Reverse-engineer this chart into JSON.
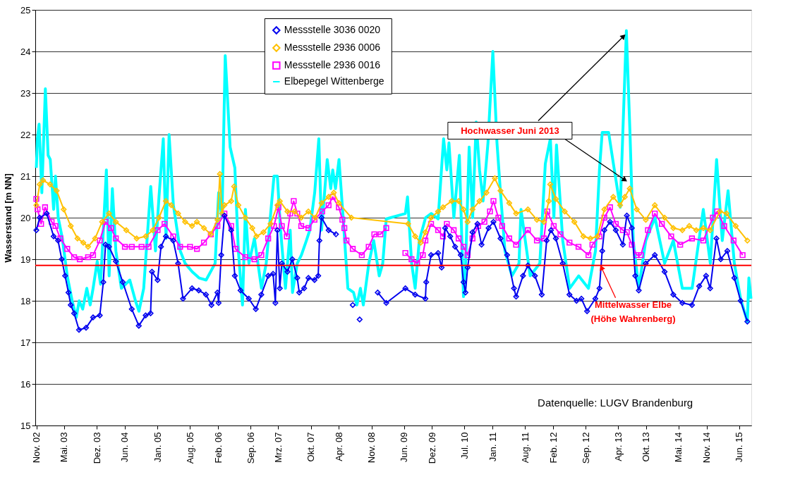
{
  "chart_data": {
    "type": "line",
    "ylabel": "Wasserstand [m NN]",
    "xlim": [
      "2002-10-25",
      "2015-08-20"
    ],
    "xticks": [
      {
        "value": "2002-11-01",
        "label": "Nov. 02"
      },
      {
        "value": "2003-05-01",
        "label": "Mai. 03"
      },
      {
        "value": "2003-12-01",
        "label": "Dez. 03"
      },
      {
        "value": "2004-06-01",
        "label": "Jun. 04"
      },
      {
        "value": "2005-01-01",
        "label": "Jan. 05"
      },
      {
        "value": "2005-08-01",
        "label": "Aug. 05"
      },
      {
        "value": "2006-02-01",
        "label": "Feb. 06"
      },
      {
        "value": "2006-09-01",
        "label": "Sep. 06"
      },
      {
        "value": "2007-03-01",
        "label": "Mrz. 07"
      },
      {
        "value": "2007-10-01",
        "label": "Okt. 07"
      },
      {
        "value": "2008-04-01",
        "label": "Apr. 08"
      },
      {
        "value": "2008-11-01",
        "label": "Nov. 08"
      },
      {
        "value": "2009-06-01",
        "label": "Jun. 09"
      },
      {
        "value": "2009-12-01",
        "label": "Dez. 09"
      },
      {
        "value": "2010-07-01",
        "label": "Jul. 10"
      },
      {
        "value": "2011-01-01",
        "label": "Jan. 11"
      },
      {
        "value": "2011-08-01",
        "label": "Aug. 11"
      },
      {
        "value": "2012-02-01",
        "label": "Feb. 12"
      },
      {
        "value": "2012-09-01",
        "label": "Sep. 12"
      },
      {
        "value": "2013-04-01",
        "label": "Apr. 13"
      },
      {
        "value": "2013-10-01",
        "label": "Okt. 13"
      },
      {
        "value": "2014-05-01",
        "label": "Mai. 14"
      },
      {
        "value": "2014-11-01",
        "label": "Nov. 14"
      },
      {
        "value": "2015-06-01",
        "label": "Jun. 15"
      }
    ],
    "ylim": [
      15,
      25
    ],
    "yticks": [
      15,
      16,
      17,
      18,
      19,
      20,
      21,
      22,
      23,
      24,
      25
    ],
    "grid": "y",
    "legend": "top",
    "series": [
      {
        "name": "Messstelle 3036 0020",
        "color": "#0000ee",
        "marker": "diamond",
        "x": [
          "2002-11-01",
          "2002-11-23",
          "2003-01-08",
          "2003-02-22",
          "2003-03-23",
          "2003-04-16",
          "2003-05-08",
          "2003-05-30",
          "2003-06-14",
          "2003-07-06",
          "2003-08-07",
          "2003-09-22",
          "2003-11-07",
          "2003-12-21",
          "2004-01-13",
          "2004-01-27",
          "2004-02-19",
          "2004-04-04",
          "2004-05-19",
          "2004-07-17",
          "2004-09-01",
          "2004-10-16",
          "2004-11-17",
          "2004-11-26",
          "2005-01-02",
          "2005-01-24",
          "2005-02-25",
          "2005-04-14",
          "2005-05-16",
          "2005-06-17",
          "2005-08-15",
          "2005-09-28",
          "2005-11-14",
          "2005-12-20",
          "2006-01-28",
          "2006-02-05",
          "2006-02-22",
          "2006-03-15",
          "2006-04-28",
          "2006-05-22",
          "2006-06-28",
          "2006-08-21",
          "2006-10-06",
          "2006-11-11",
          "2006-12-26",
          "2007-01-27",
          "2007-02-11",
          "2007-02-24",
          "2007-03-12",
          "2007-03-25",
          "2007-05-01",
          "2007-06-02",
          "2007-07-04",
          "2007-07-17",
          "2007-08-18",
          "2007-09-15",
          "2007-10-25",
          "2007-11-18",
          "2007-11-26",
          "2007-12-10",
          "2008-01-25",
          "2008-03-13",
          "2008-04-15",
          "2008-07-01",
          "2008-07-15",
          "2008-08-15",
          "2008-09-15",
          "2008-12-11",
          "2009-02-05",
          "2009-06-10",
          "2009-08-13",
          "2009-10-19",
          "2009-10-24",
          "2009-11-25",
          "2010-01-10",
          "2010-02-02",
          "2010-02-25",
          "2010-03-30",
          "2010-05-01",
          "2010-06-07",
          "2010-06-25",
          "2010-07-08",
          "2010-07-22",
          "2010-08-23",
          "2010-09-24",
          "2010-10-21",
          "2010-12-06",
          "2011-01-07",
          "2011-02-22",
          "2011-04-06",
          "2011-05-21",
          "2011-06-04",
          "2011-07-19",
          "2011-08-20",
          "2011-10-05",
          "2011-11-19",
          "2011-12-21",
          "2012-01-18",
          "2012-02-19",
          "2012-04-04",
          "2012-05-18",
          "2012-07-03",
          "2012-08-04",
          "2012-09-10",
          "2012-11-03",
          "2012-11-30",
          "2012-12-18",
          "2013-01-01",
          "2013-02-07",
          "2013-03-17",
          "2013-05-02",
          "2013-05-28",
          "2013-06-30",
          "2013-07-22",
          "2013-08-14",
          "2013-09-29",
          "2013-11-27",
          "2014-01-30",
          "2014-03-28",
          "2014-05-26",
          "2014-07-28",
          "2014-09-13",
          "2014-10-28",
          "2014-11-24",
          "2015-01-04",
          "2015-02-01",
          "2015-03-16",
          "2015-05-01",
          "2015-06-11",
          "2015-07-25"
        ],
        "values": [
          19.7,
          20.0,
          20.1,
          19.55,
          19.45,
          19.0,
          18.6,
          18.2,
          17.9,
          17.7,
          17.3,
          17.35,
          17.6,
          17.65,
          18.45,
          19.35,
          19.3,
          18.95,
          18.45,
          17.8,
          17.4,
          17.65,
          17.7,
          18.7,
          18.5,
          19.3,
          19.55,
          19.45,
          18.9,
          18.05,
          18.3,
          18.25,
          18.15,
          17.9,
          18.2,
          17.95,
          19.1,
          20.05,
          19.7,
          18.6,
          18.25,
          18.05,
          17.8,
          18.15,
          18.6,
          18.65,
          17.95,
          19.7,
          18.3,
          18.9,
          18.7,
          19.0,
          18.55,
          18.2,
          18.3,
          18.55,
          18.5,
          18.6,
          19.45,
          20.0,
          19.7,
          19.6,
          null,
          17.9,
          null,
          17.55,
          null,
          18.2,
          17.95,
          18.3,
          18.15,
          18.05,
          18.45,
          19.1,
          19.15,
          18.8,
          19.75,
          19.55,
          19.3,
          19.1,
          18.45,
          18.2,
          18.8,
          19.65,
          19.85,
          19.35,
          19.75,
          19.9,
          19.5,
          19.1,
          18.3,
          18.1,
          18.6,
          18.85,
          18.6,
          18.15,
          19.45,
          19.7,
          19.5,
          18.9,
          18.15,
          18.0,
          18.05,
          17.75,
          18.05,
          18.3,
          19.2,
          19.7,
          19.9,
          19.7,
          19.35,
          20.05,
          19.75,
          18.6,
          18.25,
          18.9,
          19.1,
          18.7,
          18.15,
          17.95,
          17.9,
          18.35,
          18.6,
          18.3,
          19.5,
          19.0,
          19.2,
          18.55,
          18.0,
          17.5
        ]
      },
      {
        "name": "Messstelle 2936 0006",
        "color": "#ffc000",
        "marker": "diamond",
        "x": [
          "2002-11-01",
          "2002-11-23",
          "2002-12-15",
          "2003-01-30",
          "2003-03-14",
          "2003-04-29",
          "2003-06-14",
          "2003-07-28",
          "2003-09-04",
          "2003-10-05",
          "2003-11-20",
          "2004-01-05",
          "2004-02-19",
          "2004-04-04",
          "2004-06-11",
          "2004-08-18",
          "2004-10-16",
          "2004-12-01",
          "2005-01-11",
          "2005-02-25",
          "2005-04-01",
          "2005-05-16",
          "2005-07-01",
          "2005-08-15",
          "2005-09-16",
          "2005-11-01",
          "2005-12-16",
          "2006-01-28",
          "2006-02-13",
          "2006-02-27",
          "2006-03-15",
          "2006-04-28",
          "2006-05-17",
          "2006-06-14",
          "2006-07-29",
          "2006-09-13",
          "2006-10-10",
          "2006-11-25",
          "2007-01-10",
          "2007-02-24",
          "2007-03-12",
          "2007-05-01",
          "2007-06-16",
          "2007-07-30",
          "2007-09-15",
          "2007-10-30",
          "2007-12-10",
          "2008-01-25",
          "2008-02-28",
          "2008-04-01",
          "2008-06-22",
          "2009-06-28",
          "2009-08-13",
          "2009-09-18",
          "2009-10-19",
          "2009-11-25",
          "2010-01-10",
          "2010-02-11",
          "2010-04-09",
          "2010-05-24",
          "2010-06-25",
          "2010-07-22",
          "2010-08-23",
          "2010-10-08",
          "2010-11-22",
          "2011-01-16",
          "2011-02-22",
          "2011-04-20",
          "2011-06-04",
          "2011-08-20",
          "2011-10-18",
          "2011-12-03",
          "2012-01-04",
          "2012-01-13",
          "2012-02-19",
          "2012-04-17",
          "2012-06-19",
          "2012-08-17",
          "2012-10-02",
          "2012-11-17",
          "2013-01-01",
          "2013-02-28",
          "2013-04-14",
          "2013-05-15",
          "2013-06-16",
          "2013-08-01",
          "2013-09-29",
          "2013-11-27",
          "2014-01-30",
          "2014-03-28",
          "2014-05-26",
          "2014-07-10",
          "2014-08-25",
          "2014-10-10",
          "2014-11-24",
          "2015-01-27",
          "2015-03-11",
          "2015-05-10",
          "2015-07-25"
        ],
        "values": [
          20.3,
          20.8,
          20.9,
          20.8,
          20.65,
          20.2,
          19.8,
          19.5,
          19.4,
          19.3,
          19.5,
          19.9,
          20.1,
          19.9,
          19.7,
          19.5,
          19.55,
          19.7,
          20.0,
          20.4,
          20.3,
          20.1,
          19.9,
          19.8,
          19.9,
          19.75,
          19.6,
          19.95,
          21.05,
          20.1,
          20.3,
          20.4,
          20.75,
          20.3,
          20.0,
          19.75,
          19.55,
          19.65,
          19.85,
          20.3,
          20.4,
          20.15,
          20.15,
          20.0,
          20.15,
          20.0,
          20.35,
          20.5,
          20.6,
          20.35,
          20.0,
          19.85,
          19.55,
          19.4,
          19.65,
          20.0,
          20.15,
          20.25,
          20.4,
          20.4,
          20.2,
          19.9,
          20.2,
          20.4,
          20.6,
          20.95,
          20.65,
          20.35,
          20.1,
          20.2,
          19.95,
          19.9,
          20.4,
          20.8,
          20.45,
          20.15,
          19.9,
          19.55,
          19.5,
          19.55,
          20.2,
          20.5,
          20.3,
          20.5,
          20.7,
          20.2,
          19.95,
          20.3,
          20.0,
          19.75,
          19.7,
          19.8,
          19.7,
          19.75,
          19.7,
          20.15,
          20.1,
          19.8,
          19.45
        ]
      },
      {
        "name": "Messstelle 2936 0016",
        "color": "#ff00ff",
        "marker": "square",
        "x": [
          "2002-11-01",
          "2002-11-09",
          "2002-12-02",
          "2002-12-28",
          "2003-02-09",
          "2003-03-06",
          "2003-04-07",
          "2003-05-22",
          "2003-07-06",
          "2003-08-12",
          "2003-10-05",
          "2003-11-07",
          "2003-12-21",
          "2004-01-27",
          "2004-03-03",
          "2004-04-04",
          "2004-06-02",
          "2004-07-17",
          "2004-09-19",
          "2004-11-04",
          "2005-01-02",
          "2005-02-16",
          "2005-04-14",
          "2005-05-29",
          "2005-08-02",
          "2005-09-16",
          "2005-11-01",
          "2005-12-16",
          "2006-01-28",
          "2006-03-15",
          "2006-04-28",
          "2006-05-26",
          "2006-07-29",
          "2006-09-27",
          "2006-11-11",
          "2006-12-26",
          "2007-02-02",
          "2007-03-03",
          "2007-03-25",
          "2007-04-27",
          "2007-05-19",
          "2007-06-11",
          "2007-07-04",
          "2007-07-30",
          "2007-09-15",
          "2007-10-25",
          "2007-12-14",
          "2008-01-25",
          "2008-02-21",
          "2008-04-01",
          "2008-04-24",
          "2008-05-07",
          "2008-05-21",
          "2008-07-01",
          "2008-08-29",
          "2008-10-13",
          "2008-11-19",
          "2008-12-29",
          "2009-02-05",
          "2009-04-01",
          "2009-06-10",
          "2009-07-20",
          "2009-08-26",
          "2009-10-02",
          "2009-10-19",
          "2009-11-25",
          "2010-01-10",
          "2010-02-11",
          "2010-03-08",
          "2010-04-22",
          "2010-05-24",
          "2010-06-25",
          "2010-07-22",
          "2010-08-23",
          "2010-09-29",
          "2010-11-09",
          "2010-12-15",
          "2011-01-07",
          "2011-02-08",
          "2011-03-05",
          "2011-04-20",
          "2011-06-04",
          "2011-08-20",
          "2011-10-18",
          "2011-12-03",
          "2011-12-25",
          "2012-02-05",
          "2012-03-20",
          "2012-05-18",
          "2012-07-16",
          "2012-09-19",
          "2012-10-15",
          "2012-11-30",
          "2013-01-01",
          "2013-02-07",
          "2013-03-17",
          "2013-05-02",
          "2013-05-28",
          "2013-06-30",
          "2013-08-01",
          "2013-08-28",
          "2013-10-13",
          "2013-11-27",
          "2014-01-12",
          "2014-03-14",
          "2014-05-12",
          "2014-07-28",
          "2014-10-10",
          "2014-12-12",
          "2015-01-09",
          "2015-02-24",
          "2015-04-26",
          "2015-06-24"
        ],
        "values": [
          20.45,
          20.2,
          19.85,
          20.25,
          19.9,
          19.8,
          19.5,
          19.25,
          19.05,
          19.0,
          19.05,
          19.1,
          19.45,
          19.9,
          19.75,
          19.5,
          19.3,
          19.3,
          19.3,
          19.3,
          19.7,
          19.85,
          19.55,
          19.3,
          19.3,
          19.25,
          19.4,
          19.6,
          19.8,
          20.1,
          19.8,
          19.25,
          19.05,
          19.0,
          19.1,
          19.5,
          19.8,
          20.25,
          19.8,
          19.55,
          20.1,
          20.4,
          20.1,
          19.8,
          19.75,
          19.95,
          20.15,
          20.3,
          20.5,
          20.25,
          19.95,
          19.75,
          19.45,
          19.25,
          19.1,
          19.3,
          19.6,
          19.6,
          19.75,
          null,
          19.15,
          19.0,
          18.9,
          19.1,
          19.45,
          19.85,
          19.7,
          19.55,
          19.85,
          19.7,
          19.5,
          19.3,
          19.1,
          19.5,
          19.8,
          19.9,
          20.15,
          20.4,
          20.0,
          19.8,
          19.5,
          19.35,
          19.7,
          19.45,
          19.5,
          20.15,
          19.8,
          19.6,
          19.4,
          19.3,
          19.1,
          19.35,
          19.55,
          20.0,
          20.25,
          19.85,
          19.7,
          19.65,
          19.35,
          19.1,
          19.1,
          19.7,
          20.1,
          19.85,
          19.55,
          19.35,
          19.5,
          19.45,
          20.0,
          20.15,
          19.8,
          19.45,
          19.1
        ]
      },
      {
        "name": "Elbepegel Wittenberge",
        "color": "#00ffff",
        "marker": "none",
        "x": [
          "2002-11-01",
          "2002-11-08",
          "2002-11-19",
          "2002-12-07",
          "2002-12-30",
          "2003-01-17",
          "2003-01-31",
          "2003-02-22",
          "2003-03-06",
          "2003-03-24",
          "2003-04-20",
          "2003-05-22",
          "2003-06-23",
          "2003-07-20",
          "2003-08-08",
          "2003-08-31",
          "2003-09-27",
          "2003-10-19",
          "2003-11-07",
          "2003-12-04",
          "2003-12-26",
          "2004-02-02",
          "2004-02-20",
          "2004-03-12",
          "2004-04-04",
          "2004-05-10",
          "2004-07-04",
          "2004-08-10",
          "2004-09-02",
          "2004-10-03",
          "2004-11-18",
          "2004-12-19",
          "2005-01-11",
          "2005-02-08",
          "2005-02-26",
          "2005-03-18",
          "2005-04-15",
          "2005-05-30",
          "2005-07-01",
          "2005-08-16",
          "2005-09-30",
          "2005-11-15",
          "2006-01-13",
          "2006-02-05",
          "2006-02-27",
          "2006-03-20",
          "2006-04-21",
          "2006-05-22",
          "2006-06-14",
          "2006-07-11",
          "2006-07-30",
          "2006-08-22",
          "2006-09-27",
          "2006-11-12",
          "2006-12-13",
          "2007-02-02",
          "2007-02-24",
          "2007-03-17",
          "2007-04-18",
          "2007-05-19",
          "2007-06-03",
          "2007-07-04",
          "2007-07-31",
          "2007-09-02",
          "2007-09-24",
          "2007-10-26",
          "2007-11-22",
          "2007-12-10",
          "2008-01-16",
          "2008-02-08",
          "2008-02-21",
          "2008-03-10",
          "2008-04-02",
          "2008-04-29",
          "2008-05-30",
          "2008-07-06",
          "2008-07-28",
          "2008-08-20",
          "2008-09-08",
          "2008-10-14",
          "2008-11-15",
          "2008-12-21",
          "2009-01-13",
          "2009-02-05",
          "2009-06-10",
          "2009-06-24",
          "2009-07-21",
          "2009-08-13",
          "2009-09-09",
          "2009-10-20",
          "2009-11-26",
          "2010-01-10",
          "2010-02-15",
          "2010-03-08",
          "2010-03-22",
          "2010-04-23",
          "2010-05-29",
          "2010-06-25",
          "2010-07-09",
          "2010-08-01",
          "2010-08-24",
          "2010-09-16",
          "2010-10-08",
          "2010-10-31",
          "2010-12-02",
          "2011-01-03",
          "2011-01-30",
          "2011-02-22",
          "2011-03-23",
          "2011-05-08",
          "2011-06-23",
          "2011-07-06",
          "2011-09-04",
          "2011-11-06",
          "2011-12-12",
          "2012-01-14",
          "2012-02-06",
          "2012-02-23",
          "2012-04-04",
          "2012-05-19",
          "2012-07-17",
          "2012-09-19",
          "2012-11-04",
          "2012-11-30",
          "2012-12-18",
          "2013-01-29",
          "2013-03-01",
          "2013-04-15",
          "2013-05-25",
          "2013-06-18",
          "2013-07-09",
          "2013-08-14",
          "2013-09-29",
          "2013-11-28",
          "2014-01-30",
          "2014-03-28",
          "2014-05-26",
          "2014-07-29",
          "2014-10-10",
          "2014-11-25",
          "2015-01-05",
          "2015-02-11",
          "2015-03-21",
          "2015-05-01",
          "2015-06-11",
          "2015-07-25",
          "2015-08-04",
          "2015-08-18"
        ],
        "values": [
          21.2,
          21.9,
          22.25,
          20.6,
          23.1,
          21.5,
          21.4,
          20.2,
          21.0,
          20.0,
          19.5,
          18.6,
          18.0,
          17.6,
          18.0,
          17.8,
          18.3,
          17.9,
          18.3,
          18.95,
          18.4,
          21.15,
          18.6,
          20.7,
          19.2,
          18.3,
          18.5,
          18.0,
          17.75,
          18.3,
          20.75,
          19.2,
          20.5,
          21.9,
          19.5,
          22.0,
          20.3,
          19.2,
          18.9,
          18.7,
          18.55,
          18.5,
          18.9,
          20.6,
          20.0,
          23.9,
          21.7,
          21.2,
          19.2,
          17.9,
          20.2,
          18.9,
          19.5,
          18.3,
          18.9,
          21.0,
          21.0,
          19.7,
          18.3,
          19.7,
          18.2,
          18.9,
          19.1,
          19.45,
          19.7,
          20.6,
          21.9,
          19.7,
          21.4,
          20.7,
          21.15,
          20.7,
          21.4,
          20.0,
          18.3,
          18.2,
          17.9,
          18.3,
          17.9,
          18.9,
          19.45,
          18.6,
          18.9,
          19.97,
          20.1,
          20.5,
          18.9,
          18.3,
          19.45,
          20.0,
          20.1,
          19.97,
          21.9,
          21.15,
          21.8,
          20.0,
          21.5,
          18.1,
          18.9,
          21.7,
          20.0,
          22.3,
          21.15,
          20.4,
          21.8,
          24.0,
          21.8,
          20.6,
          19.2,
          18.6,
          18.9,
          20.2,
          18.6,
          18.9,
          21.3,
          21.9,
          20.0,
          21.75,
          19.45,
          18.3,
          18.6,
          18.3,
          19.2,
          21.15,
          22.05,
          22.05,
          21.3,
          20.25,
          24.5,
          22.0,
          19.45,
          18.3,
          19.45,
          20.0,
          18.9,
          19.45,
          18.3,
          18.3,
          20.2,
          18.9,
          21.4,
          19.45,
          20.65,
          18.9,
          18.05,
          17.5,
          18.55,
          18.05
        ]
      }
    ],
    "ref_lines": [
      {
        "axis": "y",
        "value": 18.85,
        "label": "Mittelwasser Elbe\n(Höhe Wahrenberg)",
        "color": "#ff0000"
      }
    ],
    "annotations": [
      {
        "text": "Hochwasser Juni 2013",
        "x": "2013-05-25",
        "y": 24.5
      },
      "Datenquelle: LUGV Brandenburg"
    ]
  }
}
